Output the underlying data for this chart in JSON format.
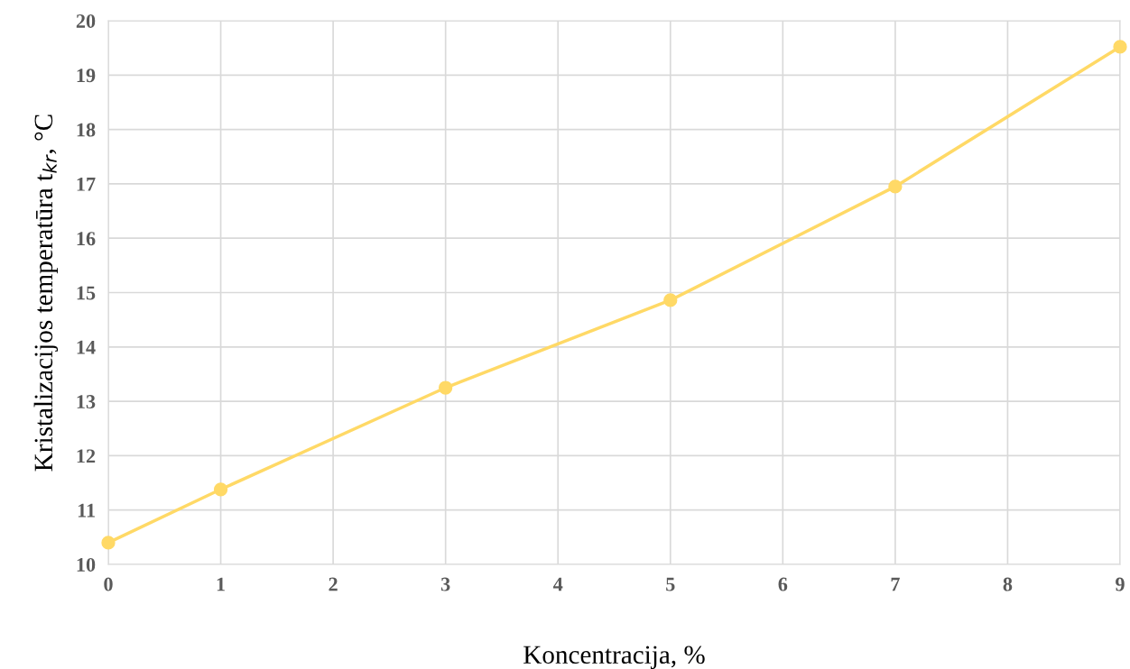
{
  "chart_data": {
    "type": "line",
    "xlabel": "Koncentracija, %",
    "ylabel": "Kristalizacijos temperatūra t$_{kr}$, °C",
    "x": [
      0,
      1,
      3,
      5,
      7,
      9
    ],
    "series": [
      {
        "color": "#ffd966",
        "values": [
          10.4,
          11.38,
          13.25,
          14.86,
          16.95,
          19.52
        ]
      }
    ],
    "xlim": [
      0,
      9
    ],
    "xticks": [
      0,
      1,
      2,
      3,
      4,
      5,
      6,
      7,
      8,
      9
    ],
    "ylim": [
      10,
      20
    ],
    "yticks": [
      10,
      11,
      12,
      13,
      14,
      15,
      16,
      17,
      18,
      19,
      20
    ],
    "grid": true,
    "marker": "circle",
    "line_style": "solid"
  }
}
